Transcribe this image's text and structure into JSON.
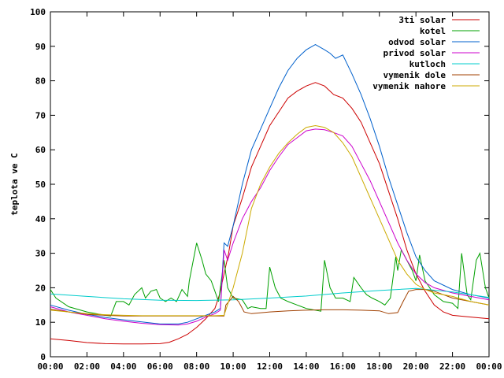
{
  "chart_data": {
    "type": "line",
    "title": "",
    "xlabel": "",
    "ylabel": "teplota ve C",
    "xlim": [
      0,
      24
    ],
    "ylim": [
      0,
      100
    ],
    "x_ticks": [
      "00:00",
      "02:00",
      "04:00",
      "06:00",
      "08:00",
      "10:00",
      "12:00",
      "14:00",
      "16:00",
      "18:00",
      "20:00",
      "22:00",
      "00:00"
    ],
    "y_ticks": [
      "0",
      "10",
      "20",
      "30",
      "40",
      "50",
      "60",
      "70",
      "80",
      "90",
      "100"
    ],
    "grid": false,
    "legend_position": "top-right",
    "series": [
      {
        "name": "3ti solar",
        "color": "#cc0000",
        "points": [
          [
            0,
            5.2
          ],
          [
            1,
            4.7
          ],
          [
            2,
            4.1
          ],
          [
            3,
            3.8
          ],
          [
            4,
            3.7
          ],
          [
            5,
            3.7
          ],
          [
            6,
            3.8
          ],
          [
            6.5,
            4.2
          ],
          [
            7,
            5.2
          ],
          [
            7.5,
            6.5
          ],
          [
            8,
            8.5
          ],
          [
            8.5,
            11
          ],
          [
            9,
            14
          ],
          [
            9.25,
            18
          ],
          [
            9.5,
            24
          ],
          [
            9.75,
            30
          ],
          [
            10,
            38
          ],
          [
            10.5,
            46
          ],
          [
            11,
            55
          ],
          [
            11.5,
            61
          ],
          [
            12,
            67
          ],
          [
            12.5,
            71
          ],
          [
            13,
            75
          ],
          [
            13.5,
            77
          ],
          [
            14,
            78.5
          ],
          [
            14.5,
            79.5
          ],
          [
            15,
            78.5
          ],
          [
            15.3,
            77
          ],
          [
            15.5,
            76
          ],
          [
            16,
            75
          ],
          [
            16.5,
            72
          ],
          [
            17,
            68
          ],
          [
            17.5,
            62
          ],
          [
            18,
            56
          ],
          [
            18.5,
            48
          ],
          [
            19,
            40
          ],
          [
            19.5,
            31
          ],
          [
            20,
            24
          ],
          [
            20.5,
            19
          ],
          [
            21,
            15
          ],
          [
            21.5,
            13
          ],
          [
            22,
            12
          ],
          [
            23,
            11.5
          ],
          [
            24,
            11
          ]
        ]
      },
      {
        "name": "kotel",
        "color": "#00a000",
        "points": [
          [
            0,
            19.5
          ],
          [
            0.3,
            17
          ],
          [
            1,
            14.5
          ],
          [
            2,
            13
          ],
          [
            3,
            12
          ],
          [
            3.3,
            11.8
          ],
          [
            3.6,
            16
          ],
          [
            4,
            16
          ],
          [
            4.3,
            15
          ],
          [
            4.6,
            18
          ],
          [
            5,
            20
          ],
          [
            5.2,
            17
          ],
          [
            5.5,
            19
          ],
          [
            5.8,
            19.5
          ],
          [
            6,
            17
          ],
          [
            6.3,
            16
          ],
          [
            6.6,
            17
          ],
          [
            6.9,
            16
          ],
          [
            7.2,
            19.5
          ],
          [
            7.5,
            17.5
          ],
          [
            7.6,
            22
          ],
          [
            8,
            33
          ],
          [
            8.3,
            28
          ],
          [
            8.5,
            24
          ],
          [
            8.8,
            22
          ],
          [
            9,
            19
          ],
          [
            9.2,
            16
          ],
          [
            9.5,
            28
          ],
          [
            9.7,
            20
          ],
          [
            10,
            17
          ],
          [
            10.5,
            16.5
          ],
          [
            10.8,
            14
          ],
          [
            11,
            14.5
          ],
          [
            11.5,
            14
          ],
          [
            11.8,
            14
          ],
          [
            12,
            26
          ],
          [
            12.3,
            20
          ],
          [
            12.6,
            17
          ],
          [
            13,
            16
          ],
          [
            13.5,
            15
          ],
          [
            14,
            14
          ],
          [
            14.5,
            13.5
          ],
          [
            14.8,
            13.2
          ],
          [
            15,
            28
          ],
          [
            15.3,
            20
          ],
          [
            15.6,
            17
          ],
          [
            16,
            17
          ],
          [
            16.4,
            16
          ],
          [
            16.6,
            23
          ],
          [
            17,
            20
          ],
          [
            17.3,
            18
          ],
          [
            17.6,
            17
          ],
          [
            18,
            16
          ],
          [
            18.3,
            15
          ],
          [
            18.6,
            17
          ],
          [
            18.9,
            29
          ],
          [
            19,
            25
          ],
          [
            19.2,
            31
          ],
          [
            19.5,
            28
          ],
          [
            19.8,
            25
          ],
          [
            20,
            22
          ],
          [
            20.2,
            29.5
          ],
          [
            20.5,
            22
          ],
          [
            21,
            18
          ],
          [
            21.5,
            16
          ],
          [
            22,
            15.5
          ],
          [
            22.3,
            14
          ],
          [
            22.5,
            30
          ],
          [
            22.8,
            18
          ],
          [
            23,
            16.5
          ],
          [
            23.3,
            28
          ],
          [
            23.5,
            30
          ],
          [
            23.8,
            20
          ],
          [
            24,
            17
          ]
        ]
      },
      {
        "name": "odvod solar",
        "color": "#0060cc",
        "points": [
          [
            0,
            15
          ],
          [
            1,
            13.5
          ],
          [
            2,
            12.3
          ],
          [
            3,
            11.4
          ],
          [
            4,
            10.7
          ],
          [
            5,
            10.1
          ],
          [
            6,
            9.5
          ],
          [
            7,
            9.5
          ],
          [
            7.5,
            10
          ],
          [
            8,
            11
          ],
          [
            8.5,
            12
          ],
          [
            9,
            13
          ],
          [
            9.3,
            14
          ],
          [
            9.5,
            33
          ],
          [
            9.7,
            32
          ],
          [
            10,
            38
          ],
          [
            10.5,
            50
          ],
          [
            11,
            60
          ],
          [
            11.5,
            66
          ],
          [
            12,
            72
          ],
          [
            12.5,
            78
          ],
          [
            13,
            83
          ],
          [
            13.5,
            86.5
          ],
          [
            14,
            89
          ],
          [
            14.5,
            90.5
          ],
          [
            15,
            89
          ],
          [
            15.3,
            88
          ],
          [
            15.6,
            86.5
          ],
          [
            16,
            87.5
          ],
          [
            16.5,
            82
          ],
          [
            17,
            76
          ],
          [
            17.5,
            69
          ],
          [
            18,
            61
          ],
          [
            18.5,
            52
          ],
          [
            19,
            44
          ],
          [
            19.5,
            36
          ],
          [
            20,
            29
          ],
          [
            20.5,
            25
          ],
          [
            21,
            22
          ],
          [
            22,
            19.5
          ],
          [
            23,
            18
          ],
          [
            24,
            17
          ]
        ]
      },
      {
        "name": "privod solar",
        "color": "#cc00cc",
        "points": [
          [
            0,
            14.5
          ],
          [
            1,
            13
          ],
          [
            2,
            12
          ],
          [
            3,
            11
          ],
          [
            4,
            10.3
          ],
          [
            5,
            9.7
          ],
          [
            6,
            9.3
          ],
          [
            7,
            9.2
          ],
          [
            7.5,
            9.5
          ],
          [
            8,
            10.3
          ],
          [
            8.5,
            11.5
          ],
          [
            9,
            12.5
          ],
          [
            9.3,
            13.5
          ],
          [
            9.5,
            31
          ],
          [
            9.7,
            28
          ],
          [
            10,
            33
          ],
          [
            10.5,
            40
          ],
          [
            11,
            45
          ],
          [
            11.5,
            49
          ],
          [
            12,
            54
          ],
          [
            12.5,
            58
          ],
          [
            13,
            61.5
          ],
          [
            13.5,
            63.5
          ],
          [
            14,
            65.5
          ],
          [
            14.5,
            66
          ],
          [
            15,
            65.8
          ],
          [
            15.5,
            65
          ],
          [
            16,
            64
          ],
          [
            16.5,
            61
          ],
          [
            17,
            56
          ],
          [
            17.5,
            51
          ],
          [
            18,
            45
          ],
          [
            18.5,
            39
          ],
          [
            19,
            33
          ],
          [
            19.5,
            28
          ],
          [
            20,
            24
          ],
          [
            20.5,
            21.5
          ],
          [
            21,
            20
          ],
          [
            22,
            18.5
          ],
          [
            23,
            17.5
          ],
          [
            24,
            16.5
          ]
        ]
      },
      {
        "name": "kutloch",
        "color": "#00cccc",
        "points": [
          [
            0,
            18.2
          ],
          [
            2,
            17.5
          ],
          [
            4,
            16.8
          ],
          [
            6,
            16.4
          ],
          [
            8,
            16.3
          ],
          [
            10,
            16.5
          ],
          [
            12,
            17
          ],
          [
            14,
            17.6
          ],
          [
            16,
            18.5
          ],
          [
            18,
            19.2
          ],
          [
            20,
            19.8
          ],
          [
            22,
            18.8
          ],
          [
            24,
            17.2
          ]
        ]
      },
      {
        "name": "vymenik dole",
        "color": "#a04000",
        "points": [
          [
            0,
            13.8
          ],
          [
            1,
            13
          ],
          [
            2,
            12.3
          ],
          [
            3,
            12
          ],
          [
            4,
            11.8
          ],
          [
            5,
            11.8
          ],
          [
            6,
            11.8
          ],
          [
            7,
            11.8
          ],
          [
            8,
            11.8
          ],
          [
            9,
            11.8
          ],
          [
            9.5,
            11.8
          ],
          [
            9.6,
            15
          ],
          [
            10,
            17.5
          ],
          [
            10.3,
            16
          ],
          [
            10.6,
            13
          ],
          [
            11,
            12.5
          ],
          [
            12,
            13
          ],
          [
            13,
            13.3
          ],
          [
            14,
            13.5
          ],
          [
            15,
            13.6
          ],
          [
            16,
            13.6
          ],
          [
            17,
            13.5
          ],
          [
            18,
            13.3
          ],
          [
            18.5,
            12.5
          ],
          [
            19,
            12.8
          ],
          [
            19.3,
            16
          ],
          [
            19.6,
            19
          ],
          [
            20,
            19.5
          ],
          [
            20.5,
            19.5
          ],
          [
            21,
            19
          ],
          [
            21.5,
            18
          ],
          [
            22,
            17
          ],
          [
            23,
            16
          ],
          [
            24,
            15
          ]
        ]
      },
      {
        "name": "vymenik nahore",
        "color": "#ccaa00",
        "points": [
          [
            0,
            13.5
          ],
          [
            1,
            13
          ],
          [
            2,
            12.5
          ],
          [
            3,
            12.2
          ],
          [
            4,
            12
          ],
          [
            5,
            11.9
          ],
          [
            6,
            11.9
          ],
          [
            7,
            11.9
          ],
          [
            8,
            11.9
          ],
          [
            9,
            11.9
          ],
          [
            9.5,
            12
          ],
          [
            10,
            20
          ],
          [
            10.5,
            30
          ],
          [
            11,
            43
          ],
          [
            11.5,
            50
          ],
          [
            12,
            55
          ],
          [
            12.5,
            59
          ],
          [
            13,
            62
          ],
          [
            13.5,
            64.5
          ],
          [
            14,
            66.5
          ],
          [
            14.5,
            67
          ],
          [
            15,
            66.5
          ],
          [
            15.5,
            65
          ],
          [
            16,
            62
          ],
          [
            16.5,
            58
          ],
          [
            17,
            52
          ],
          [
            17.5,
            46
          ],
          [
            18,
            40
          ],
          [
            18.5,
            34
          ],
          [
            19,
            28
          ],
          [
            19.5,
            24
          ],
          [
            20,
            21
          ],
          [
            20.5,
            19.5
          ],
          [
            21,
            18.5
          ],
          [
            22,
            17.5
          ],
          [
            23,
            16
          ],
          [
            24,
            15
          ]
        ]
      }
    ]
  }
}
